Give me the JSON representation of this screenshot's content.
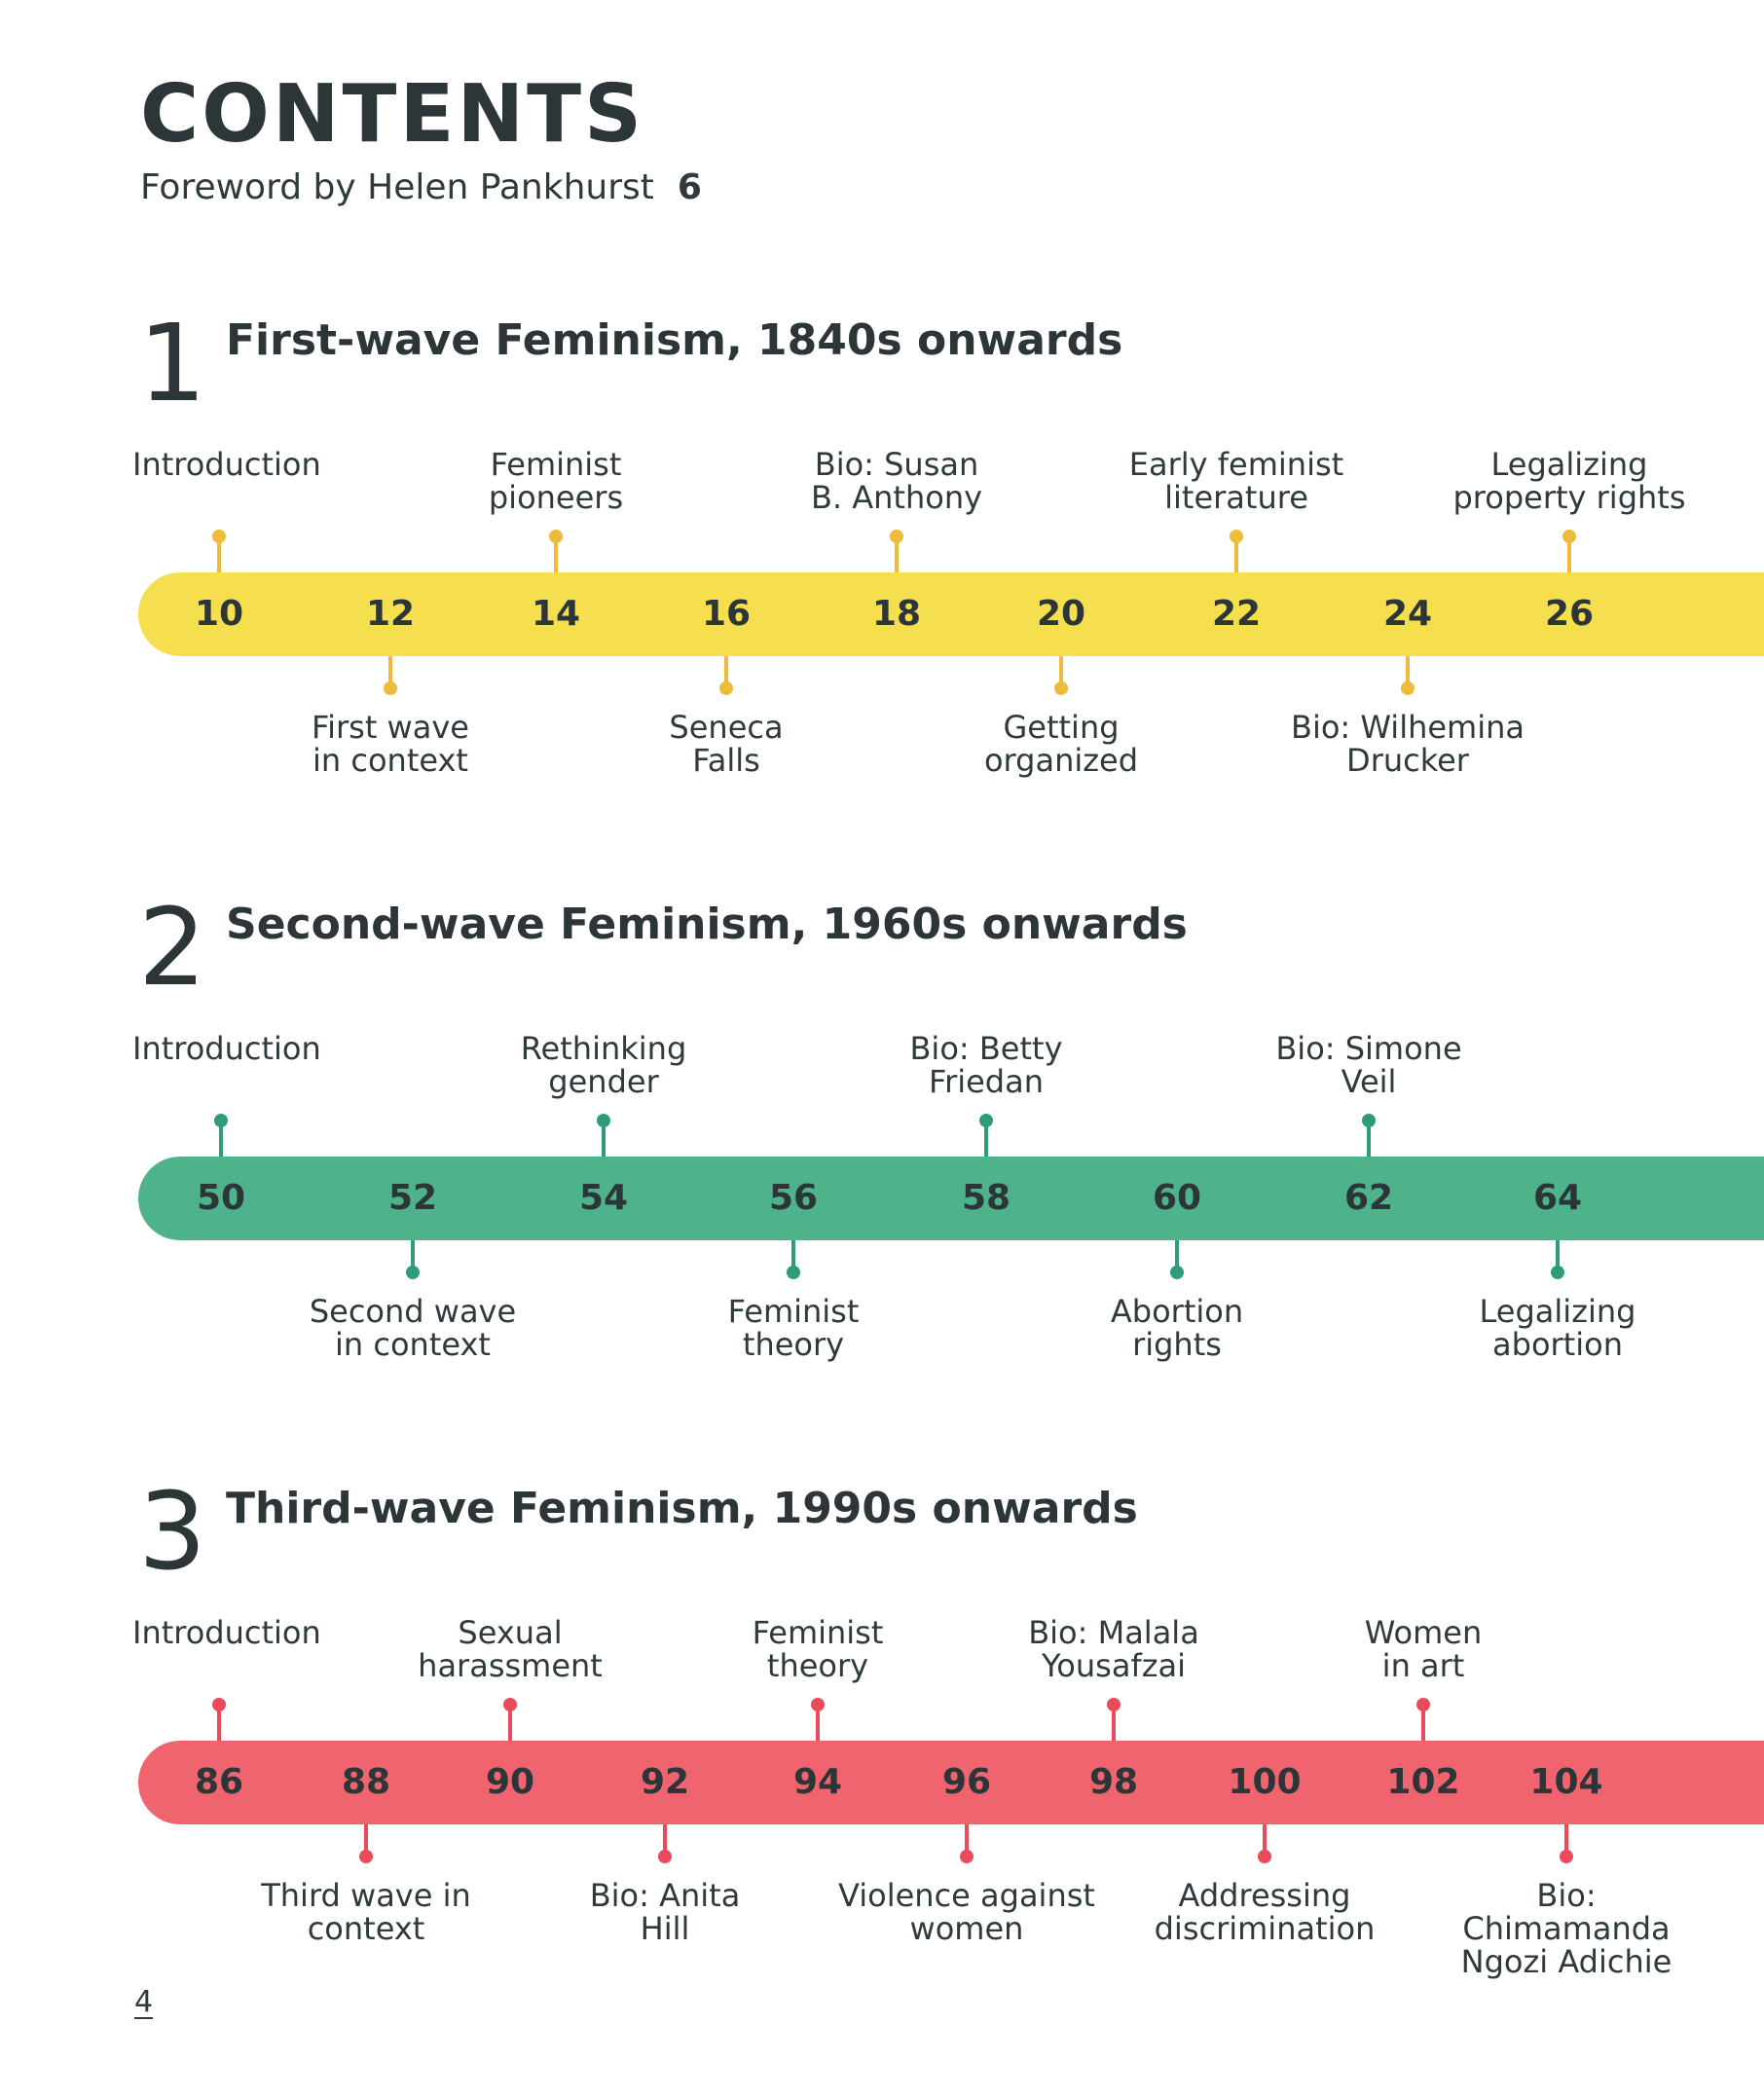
{
  "page_title": "CONTENTS",
  "foreword": {
    "text": "Foreword by Helen Pankhurst",
    "page": "6"
  },
  "footer_page": "4",
  "sections": [
    {
      "number": "1",
      "title": "First-wave Feminism, 1840s onwards",
      "color": "#f6df4e",
      "marker_color": "#efbb3a",
      "pages": [
        "10",
        "12",
        "14",
        "16",
        "18",
        "20",
        "22",
        "24",
        "26"
      ],
      "entries": [
        {
          "page": "10",
          "side": "above",
          "label": "Introduction"
        },
        {
          "page": "12",
          "side": "below",
          "label": "First wave\nin context"
        },
        {
          "page": "14",
          "side": "above",
          "label": "Feminist\npioneers"
        },
        {
          "page": "16",
          "side": "below",
          "label": "Seneca\nFalls"
        },
        {
          "page": "18",
          "side": "above",
          "label": "Bio: Susan\nB. Anthony"
        },
        {
          "page": "20",
          "side": "below",
          "label": "Getting\norganized"
        },
        {
          "page": "22",
          "side": "above",
          "label": "Early feminist\nliterature"
        },
        {
          "page": "24",
          "side": "below",
          "label": "Bio: Wilhemina\nDrucker"
        },
        {
          "page": "26",
          "side": "above",
          "label": "Legalizing\nproperty rights"
        }
      ]
    },
    {
      "number": "2",
      "title": "Second-wave Feminism, 1960s onwards",
      "color": "#4eb38b",
      "marker_color": "#2f9b7b",
      "pages": [
        "50",
        "52",
        "54",
        "56",
        "58",
        "60",
        "62",
        "64"
      ],
      "entries": [
        {
          "page": "50",
          "side": "above",
          "label": "Introduction"
        },
        {
          "page": "52",
          "side": "below",
          "label": "Second wave\nin context"
        },
        {
          "page": "54",
          "side": "above",
          "label": "Rethinking\ngender"
        },
        {
          "page": "56",
          "side": "below",
          "label": "Feminist\ntheory"
        },
        {
          "page": "58",
          "side": "above",
          "label": "Bio: Betty\nFriedan"
        },
        {
          "page": "60",
          "side": "below",
          "label": "Abortion\nrights"
        },
        {
          "page": "62",
          "side": "above",
          "label": "Bio: Simone\nVeil"
        },
        {
          "page": "64",
          "side": "below",
          "label": "Legalizing\nabortion"
        }
      ]
    },
    {
      "number": "3",
      "title": "Third-wave Feminism, 1990s onwards",
      "color": "#f06470",
      "marker_color": "#e94a5c",
      "pages": [
        "86",
        "88",
        "90",
        "92",
        "94",
        "96",
        "98",
        "100",
        "102",
        "104"
      ],
      "entries": [
        {
          "page": "86",
          "side": "above",
          "label": "Introduction"
        },
        {
          "page": "88",
          "side": "below",
          "label": "Third wave in\ncontext"
        },
        {
          "page": "90",
          "side": "above",
          "label": "Sexual\nharassment"
        },
        {
          "page": "92",
          "side": "below",
          "label": "Bio: Anita\nHill"
        },
        {
          "page": "94",
          "side": "above",
          "label": "Feminist\ntheory"
        },
        {
          "page": "96",
          "side": "below",
          "label": "Violence against\nwomen"
        },
        {
          "page": "98",
          "side": "above",
          "label": "Bio: Malala\nYousafzai"
        },
        {
          "page": "100",
          "side": "below",
          "label": "Addressing\ndiscrimination"
        },
        {
          "page": "102",
          "side": "above",
          "label": "Women\nin art"
        },
        {
          "page": "104",
          "side": "below",
          "label": "Bio:\nChimamanda\nNgozi Adichie"
        }
      ]
    }
  ]
}
